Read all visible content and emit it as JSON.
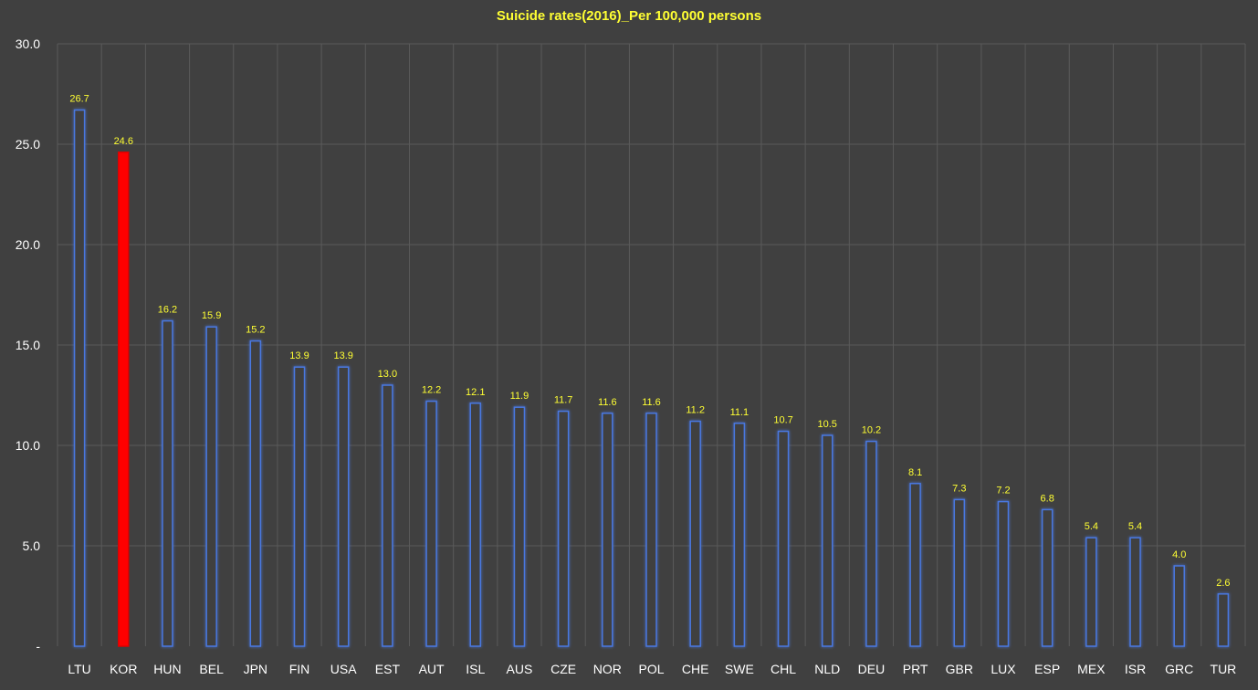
{
  "chart_data": {
    "type": "bar",
    "title": "Suicide rates(2016)_Per 100,000 persons",
    "xlabel": "",
    "ylabel": "",
    "ylim": [
      0,
      30
    ],
    "yticks": [
      0,
      5,
      10,
      15,
      20,
      25,
      30
    ],
    "ytick_labels": [
      "-",
      "5.0",
      "10.0",
      "15.0",
      "20.0",
      "25.0",
      "30.0"
    ],
    "grid": true,
    "legend": "none",
    "categories": [
      "LTU",
      "KOR",
      "HUN",
      "BEL",
      "JPN",
      "FIN",
      "USA",
      "EST",
      "AUT",
      "ISL",
      "AUS",
      "CZE",
      "NOR",
      "POL",
      "CHE",
      "SWE",
      "CHL",
      "NLD",
      "DEU",
      "PRT",
      "GBR",
      "LUX",
      "ESP",
      "MEX",
      "ISR",
      "GRC",
      "TUR"
    ],
    "values": [
      26.7,
      24.6,
      16.2,
      15.9,
      15.2,
      13.9,
      13.9,
      13.0,
      12.2,
      12.1,
      11.9,
      11.7,
      11.6,
      11.6,
      11.2,
      11.1,
      10.7,
      10.5,
      10.2,
      8.1,
      7.3,
      7.2,
      6.8,
      5.4,
      5.4,
      4.0,
      2.6
    ],
    "data_labels": [
      "26.7",
      "24.6",
      "16.2",
      "15.9",
      "15.2",
      "13.9",
      "13.9",
      "13.0",
      "12.2",
      "12.1",
      "11.9",
      "11.7",
      "11.6",
      "11.6",
      "11.2",
      "11.1",
      "10.7",
      "10.5",
      "10.2",
      "8.1",
      "7.3",
      "7.2",
      "6.8",
      "5.4",
      "5.4",
      "4.0",
      "2.6"
    ],
    "highlight_category": "KOR",
    "colors": {
      "background": "#404040",
      "grid": "#5a5a5a",
      "bar_fill": "#3f3f3f",
      "bar_stroke": "#4a78e0",
      "bar_glow": "#2a5fd0",
      "highlight_fill": "#ff0000",
      "highlight_stroke": "#e00000",
      "title_text": "#ffff33",
      "data_label_text": "#ffff33",
      "axis_text": "#ffffff"
    }
  }
}
